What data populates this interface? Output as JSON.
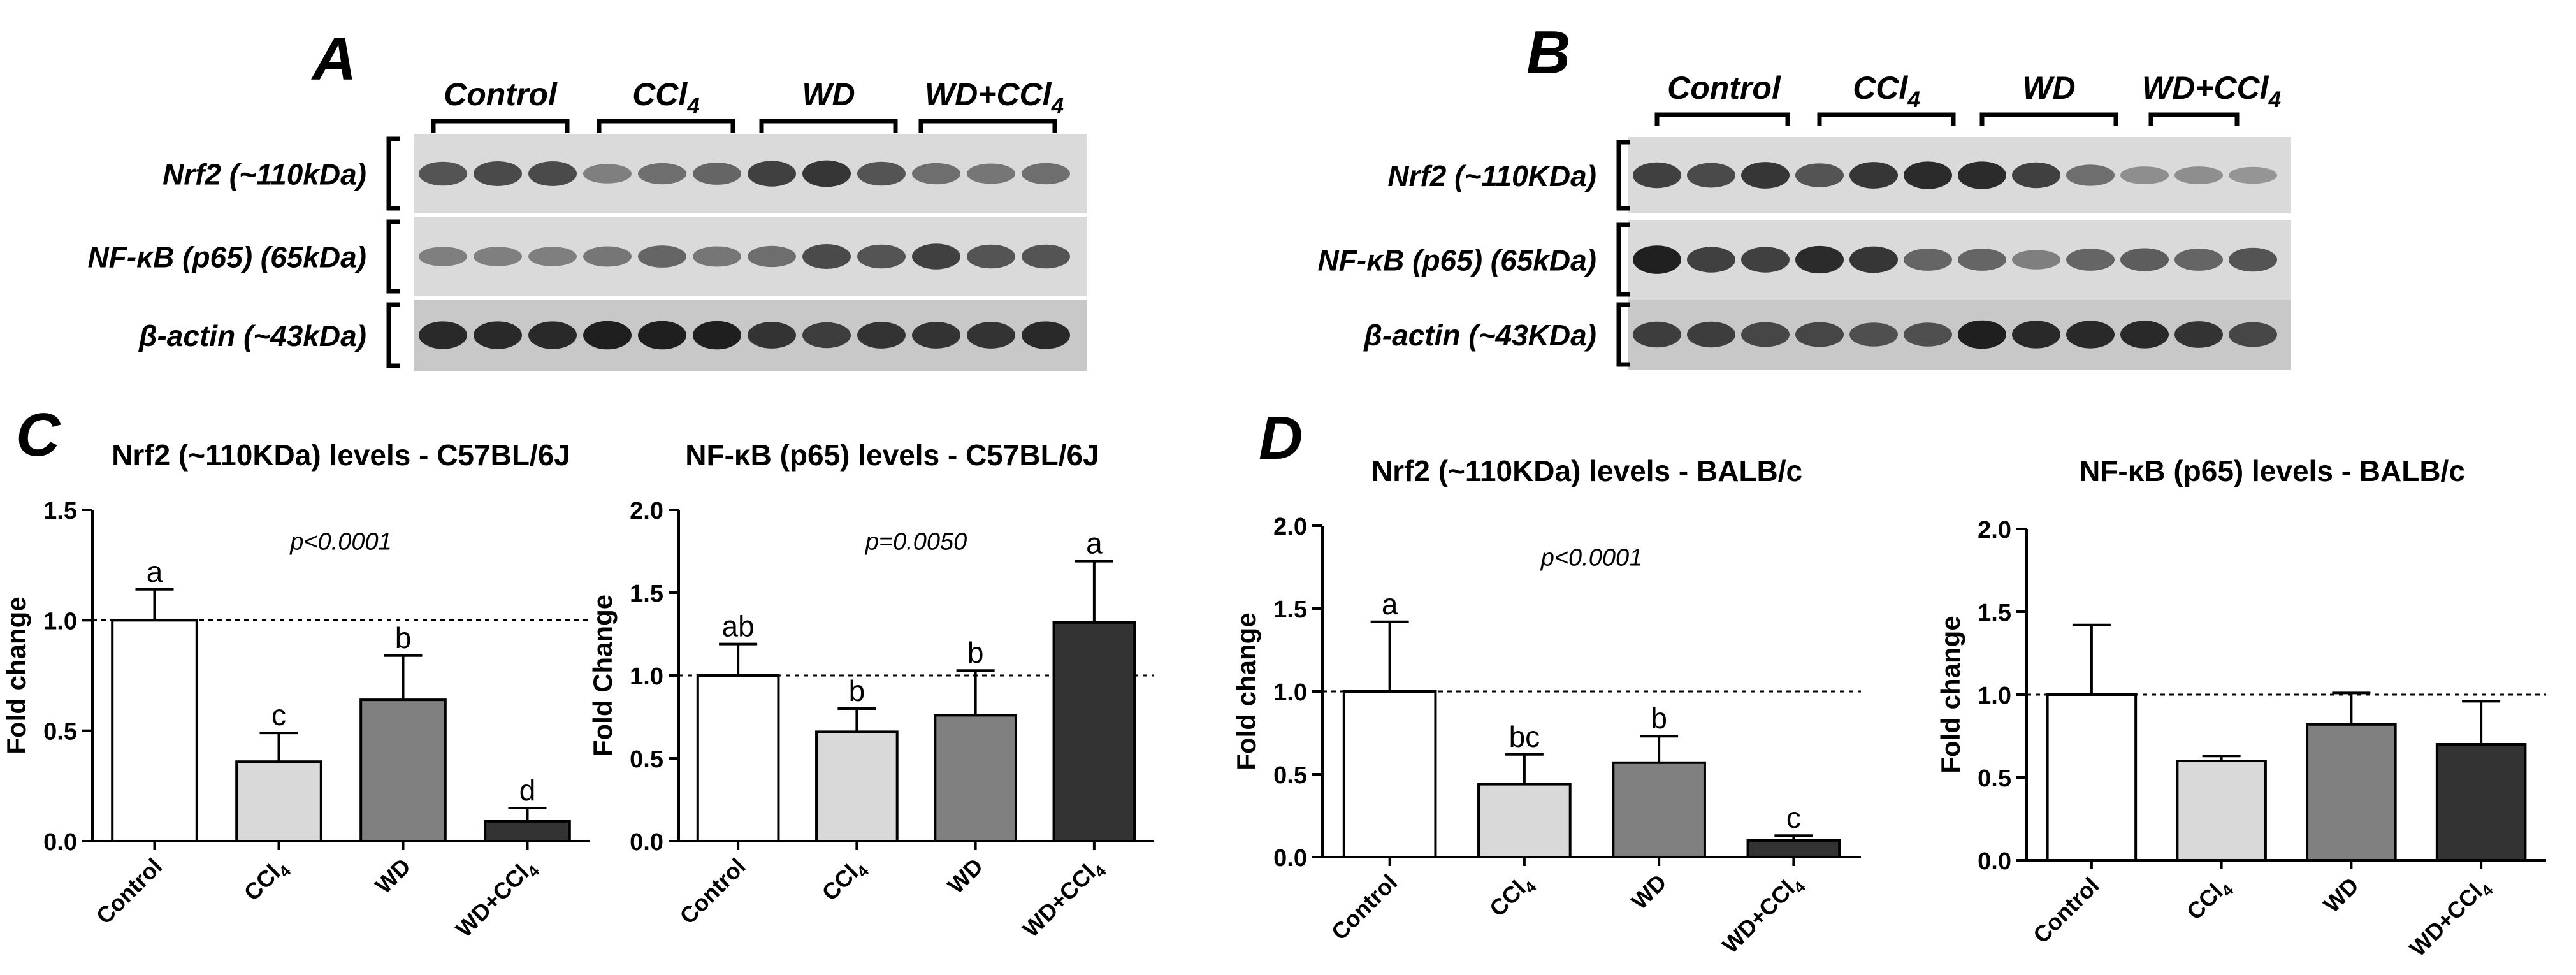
{
  "panels": {
    "A": {
      "label": "A",
      "groups": [
        "Control",
        "CCl4",
        "WD",
        "WD+CCl4"
      ],
      "bands": [
        "Nrf2 (~110kDa)",
        "NF-κB (p65) (65kDa)",
        "β-actin (~43kDa)"
      ],
      "intensities": [
        [
          0.7,
          0.75,
          0.75,
          0.45,
          0.55,
          0.6,
          0.8,
          0.85,
          0.7,
          0.55,
          0.5,
          0.55
        ],
        [
          0.45,
          0.45,
          0.45,
          0.5,
          0.6,
          0.5,
          0.55,
          0.75,
          0.7,
          0.8,
          0.7,
          0.7
        ],
        [
          0.9,
          0.9,
          0.9,
          0.95,
          0.95,
          0.95,
          0.85,
          0.8,
          0.85,
          0.85,
          0.85,
          0.9
        ]
      ]
    },
    "B": {
      "label": "B",
      "groups": [
        "Control",
        "CCl4",
        "WD",
        "WD+CCl4"
      ],
      "bands": [
        "Nrf2 (~110KDa)",
        "NF-κB (p65) (65kDa)",
        "β-actin (~43KDa)"
      ],
      "intensities": [
        [
          0.8,
          0.75,
          0.85,
          0.7,
          0.85,
          0.9,
          0.9,
          0.8,
          0.55,
          0.35,
          0.35,
          0.3
        ],
        [
          0.95,
          0.8,
          0.8,
          0.9,
          0.85,
          0.6,
          0.6,
          0.45,
          0.6,
          0.65,
          0.6,
          0.7
        ],
        [
          0.8,
          0.8,
          0.75,
          0.75,
          0.7,
          0.7,
          0.95,
          0.9,
          0.9,
          0.9,
          0.85,
          0.75
        ]
      ]
    },
    "C": {
      "label": "C"
    },
    "D": {
      "label": "D"
    }
  },
  "chart_data": [
    {
      "type": "bar",
      "panel": "C",
      "title": "Nrf2 (~110KDa) levels - C57BL/6J",
      "ylabel": "Fold change",
      "categories": [
        "Control",
        "CCl4",
        "WD",
        "WD+CCl4"
      ],
      "values": [
        1.0,
        0.36,
        0.64,
        0.09
      ],
      "errors": [
        0.14,
        0.13,
        0.2,
        0.06
      ],
      "letters": [
        "a",
        "c",
        "b",
        "d"
      ],
      "colors": [
        "#ffffff",
        "#d9d9d9",
        "#808080",
        "#333333"
      ],
      "ylim": [
        0,
        1.5
      ],
      "yticks": [
        "0.0",
        "0.5",
        "1.0",
        "1.5"
      ],
      "ytick_values": [
        0,
        0.5,
        1.0,
        1.5
      ],
      "reference_line": 1.0,
      "pvalue": "p<0.0001"
    },
    {
      "type": "bar",
      "panel": "C",
      "title": "NF-κB (p65) levels - C57BL/6J",
      "ylabel": "Fold Change",
      "categories": [
        "Control",
        "CCl4",
        "WD",
        "WD+CCl4"
      ],
      "values": [
        1.0,
        0.66,
        0.76,
        1.32
      ],
      "errors": [
        0.19,
        0.14,
        0.27,
        0.37
      ],
      "letters": [
        "ab",
        "b",
        "b",
        "a"
      ],
      "colors": [
        "#ffffff",
        "#d9d9d9",
        "#808080",
        "#333333"
      ],
      "ylim": [
        0,
        2.0
      ],
      "yticks": [
        "0.0",
        "0.5",
        "1.0",
        "1.5",
        "2.0"
      ],
      "ytick_values": [
        0,
        0.5,
        1.0,
        1.5,
        2.0
      ],
      "reference_line": 1.0,
      "pvalue": "p=0.0050"
    },
    {
      "type": "bar",
      "panel": "D",
      "title": "Nrf2 (~110KDa) levels - BALB/c",
      "ylabel": "Fold change",
      "categories": [
        "Control",
        "CCl4",
        "WD",
        "WD+CCl4"
      ],
      "values": [
        1.0,
        0.44,
        0.57,
        0.1
      ],
      "errors": [
        0.42,
        0.18,
        0.16,
        0.03
      ],
      "letters": [
        "a",
        "bc",
        "b",
        "c"
      ],
      "colors": [
        "#ffffff",
        "#d9d9d9",
        "#808080",
        "#333333"
      ],
      "ylim": [
        0,
        2.0
      ],
      "yticks": [
        "0.0",
        "0.5",
        "1.0",
        "1.5",
        "2.0"
      ],
      "ytick_values": [
        0,
        0.5,
        1.0,
        1.5,
        2.0
      ],
      "reference_line": 1.0,
      "pvalue": "p<0.0001"
    },
    {
      "type": "bar",
      "panel": "D",
      "title": "NF-κB (p65) levels - BALB/c",
      "ylabel": "Fold change",
      "categories": [
        "Control",
        "CCl4",
        "WD",
        "WD+CCl4"
      ],
      "values": [
        1.0,
        0.6,
        0.82,
        0.7
      ],
      "errors": [
        0.42,
        0.03,
        0.19,
        0.26
      ],
      "letters": [
        "",
        "",
        "",
        ""
      ],
      "colors": [
        "#ffffff",
        "#d9d9d9",
        "#808080",
        "#333333"
      ],
      "ylim": [
        0,
        2.0
      ],
      "yticks": [
        "0.0",
        "0.5",
        "1.0",
        "1.5",
        "2.0"
      ],
      "ytick_values": [
        0,
        0.5,
        1.0,
        1.5,
        2.0
      ],
      "reference_line": 1.0,
      "pvalue": ""
    }
  ]
}
